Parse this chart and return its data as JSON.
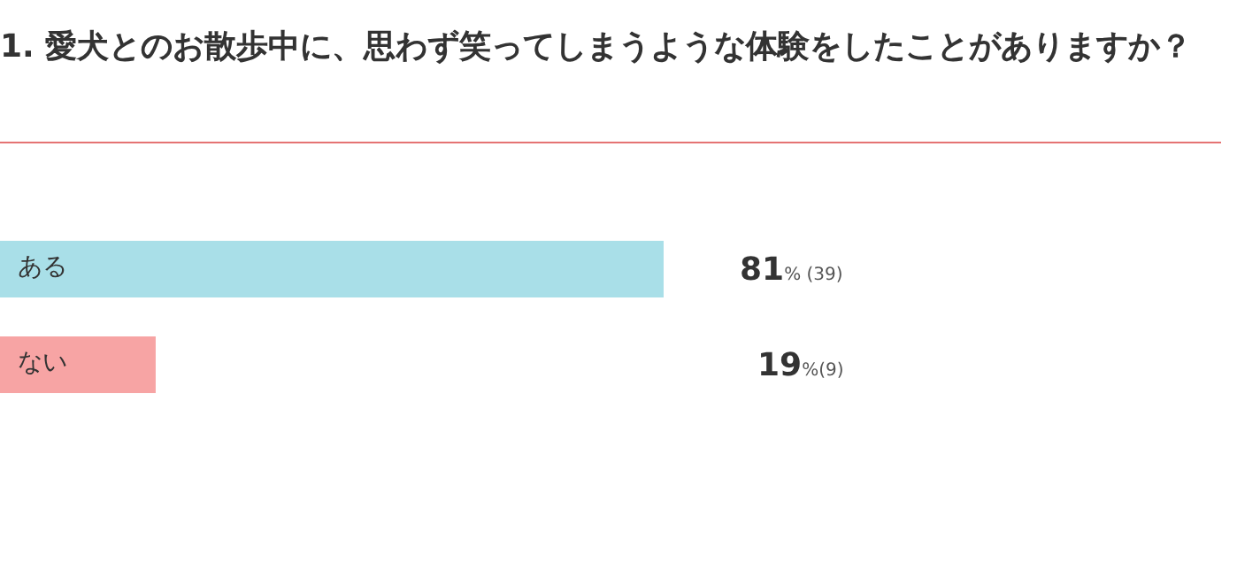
{
  "chart_data": {
    "type": "bar",
    "orientation": "horizontal",
    "title": "1. 愛犬とのお散歩中に、思わず笑ってしまうような体験をしたことがありますか？",
    "categories": [
      "ある",
      "ない"
    ],
    "values": [
      81,
      19
    ],
    "colors": [
      "#a9dfe8",
      "#f7a4a4"
    ],
    "value_labels": [
      "81% (39)",
      "19%(9)"
    ]
  }
}
